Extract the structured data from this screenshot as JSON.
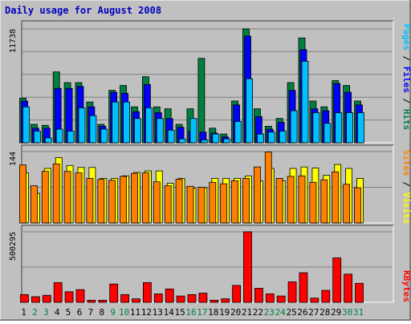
{
  "title": "Daily usage for August 2008",
  "colors": {
    "background": "#c0c0c0",
    "panel": "#c0c0c0",
    "title": "#0000c0",
    "hits": "#008040",
    "files": "#0000ff",
    "pages": "#00c0ff",
    "visits": "#ffff00",
    "sites": "#ff8000",
    "kbytes": "#ff0000",
    "weekend_label": "#008040",
    "weekday_label": "#000000"
  },
  "legend": {
    "panel1": [
      "Pages",
      "Files",
      "Hits"
    ],
    "panel2": [
      "Sites",
      "Visits"
    ],
    "panel3": [
      "KBytes"
    ]
  },
  "chart_data": [
    {
      "type": "bar",
      "title": "Daily usage for August 2008",
      "ymax_label": "11738",
      "ylim": [
        0,
        11738
      ],
      "grid": true,
      "legend_position": "right",
      "categories": [
        "1",
        "2",
        "3",
        "4",
        "5",
        "6",
        "7",
        "8",
        "9",
        "10",
        "11",
        "12",
        "13",
        "14",
        "15",
        "16",
        "17",
        "18",
        "19",
        "20",
        "21",
        "22",
        "23",
        "24",
        "25",
        "26",
        "27",
        "28",
        "29",
        "30",
        "31"
      ],
      "weekend_days": [
        "2",
        "3",
        "9",
        "10",
        "16",
        "17",
        "23",
        "24",
        "30",
        "31"
      ],
      "series": [
        {
          "name": "Hits",
          "color": "#008040",
          "values": [
            4600,
            1900,
            1800,
            7300,
            6200,
            6200,
            4200,
            1900,
            5400,
            5900,
            3700,
            6800,
            3700,
            3500,
            1900,
            3500,
            8700,
            1500,
            900,
            4300,
            11738,
            3500,
            1700,
            2500,
            6200,
            10800,
            4300,
            3700,
            6400,
            5900,
            4300
          ]
        },
        {
          "name": "Files",
          "color": "#0000ff",
          "values": [
            4300,
            1500,
            1500,
            5600,
            5600,
            5800,
            3700,
            1700,
            5200,
            5100,
            3200,
            6000,
            3100,
            2500,
            1600,
            1200,
            1100,
            1000,
            600,
            3900,
            11000,
            2700,
            1400,
            2100,
            5400,
            9600,
            3500,
            3300,
            6100,
            5200,
            3900
          ]
        },
        {
          "name": "Pages",
          "color": "#00c0ff",
          "values": [
            3700,
            1200,
            500,
            1400,
            1200,
            3600,
            2800,
            1400,
            4200,
            4200,
            2500,
            3600,
            2500,
            1300,
            400,
            2500,
            300,
            900,
            400,
            2200,
            6600,
            900,
            1100,
            1200,
            3300,
            8400,
            3100,
            2000,
            3100,
            3100,
            3100
          ]
        }
      ]
    },
    {
      "type": "bar",
      "ymax_label": "144",
      "ylim": [
        0,
        144
      ],
      "grid": true,
      "legend_position": "right",
      "series": [
        {
          "name": "Visits",
          "color": "#ffff00",
          "values": [
            101,
            60,
            110,
            132,
            116,
            112,
            112,
            90,
            90,
            95,
            102,
            105,
            105,
            80,
            90,
            70,
            71,
            90,
            90,
            90,
            95,
            85,
            110,
            85,
            110,
            113,
            111,
            96,
            118,
            110,
            90
          ]
        },
        {
          "name": "Sites",
          "color": "#ff8000",
          "values": [
            117,
            75,
            104,
            119,
            104,
            101,
            90,
            88,
            86,
            94,
            100,
            101,
            83,
            75,
            88,
            74,
            72,
            82,
            79,
            85,
            90,
            113,
            143,
            90,
            94,
            95,
            82,
            87,
            103,
            78,
            71
          ]
        }
      ]
    },
    {
      "type": "bar",
      "ymax_label": "500295",
      "ylim": [
        0,
        500295
      ],
      "grid": true,
      "legend_position": "right",
      "series": [
        {
          "name": "KBytes",
          "color": "#ff0000",
          "values": [
            55000,
            40000,
            50000,
            140000,
            75000,
            90000,
            15000,
            15000,
            130000,
            55000,
            25000,
            140000,
            60000,
            95000,
            45000,
            55000,
            65000,
            15000,
            25000,
            120000,
            500295,
            100000,
            60000,
            45000,
            145000,
            210000,
            30000,
            85000,
            315000,
            200000,
            135000
          ]
        }
      ]
    }
  ]
}
